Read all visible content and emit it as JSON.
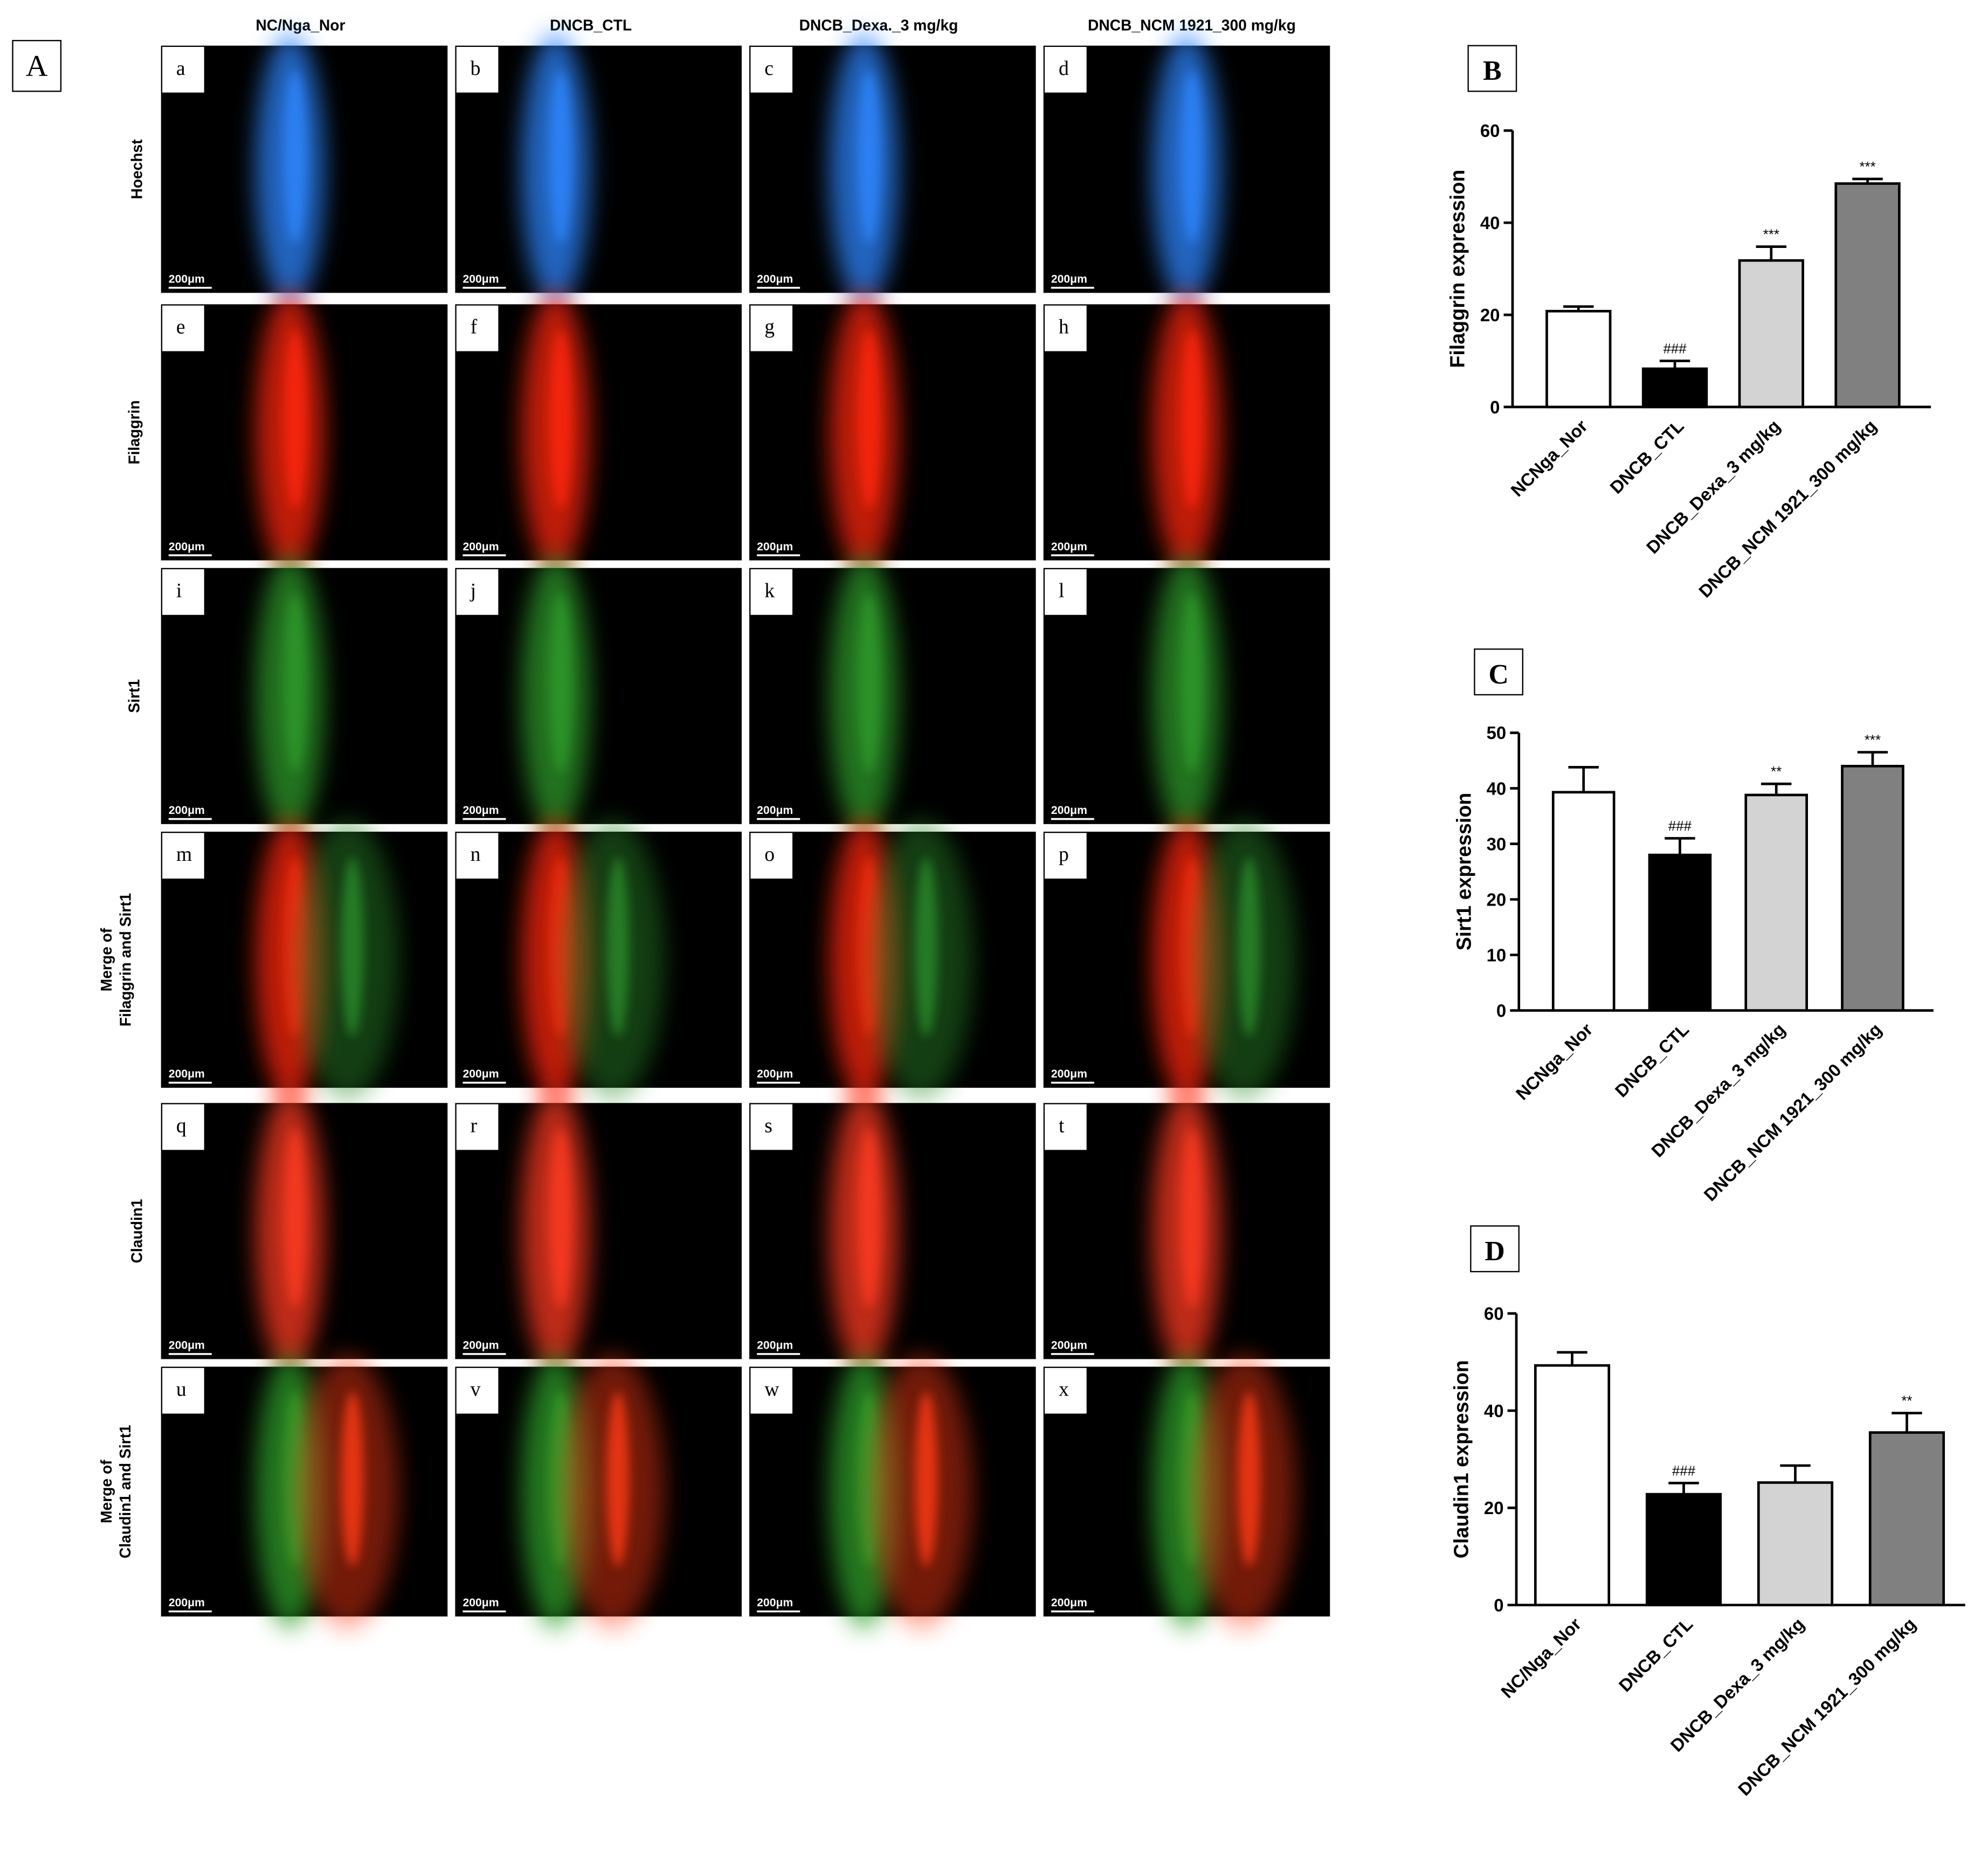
{
  "panel_a": {
    "label": "A",
    "columns": [
      "NC/Nga_Nor",
      "DNCB_CTL",
      "DNCB_Dexa._3 mg/kg",
      "DNCB_NCM 1921_300 mg/kg"
    ],
    "rows": [
      [
        "Hoechst"
      ],
      [
        "Filaggrin"
      ],
      [
        "Sirt1"
      ],
      [
        "Merge of",
        "Filaggrin  and  Sirt1"
      ],
      [
        "Claudin1"
      ],
      [
        "Merge of",
        "Claudin1 and  Sirt1"
      ]
    ],
    "panels": [
      [
        "a",
        "b",
        "c",
        "d"
      ],
      [
        "e",
        "f",
        "g",
        "h"
      ],
      [
        "i",
        "j",
        "k",
        "l"
      ],
      [
        "m",
        "n",
        "o",
        "p"
      ],
      [
        "q",
        "r",
        "s",
        "t"
      ],
      [
        "u",
        "v",
        "w",
        "x"
      ]
    ],
    "scale_bar": "200μm"
  },
  "chart_data": [
    {
      "type": "bar",
      "label": "B",
      "y_label": "Filaggrin expression",
      "categories": [
        "NCNga_Nor",
        "DNCB_CTL",
        "DNCB_Dexa_3 mg/kg",
        "DNCB_NCM 1921_300 mg/kg"
      ],
      "values": [
        20.8,
        8.3,
        31.8,
        48.5
      ],
      "errors": [
        1.0,
        1.7,
        3.0,
        1.0
      ],
      "annotations": [
        null,
        "###",
        "***",
        "***"
      ],
      "colors": [
        "#ffffff",
        "#000000",
        "#d3d3d3",
        "#808080"
      ],
      "ylim": [
        0,
        60
      ],
      "yticks": [
        0,
        20,
        40,
        60
      ]
    },
    {
      "type": "bar",
      "label": "C",
      "y_label": "Sirt1 expression",
      "categories": [
        "NCNga_Nor",
        "DNCB_CTL",
        "DNCB_Dexa_3 mg/kg",
        "DNCB_NCM 1921_300 mg/kg"
      ],
      "values": [
        39.3,
        28,
        38.8,
        44
      ],
      "errors": [
        4.5,
        3.0,
        2.0,
        2.5
      ],
      "annotations": [
        null,
        "###",
        "**",
        "***"
      ],
      "colors": [
        "#ffffff",
        "#000000",
        "#d3d3d3",
        "#808080"
      ],
      "ylim": [
        0,
        50
      ],
      "yticks": [
        0,
        10,
        20,
        30,
        40,
        50
      ]
    },
    {
      "type": "bar",
      "label": "D",
      "y_label": "Claudin1 expression",
      "categories": [
        "NC/Nga_Nor",
        "DNCB_CTL",
        "DNCB_Dexa_3 mg/kg",
        "DNCB_NCM 1921_300 mg/kg"
      ],
      "values": [
        49.3,
        22.8,
        25.2,
        35.5
      ],
      "errors": [
        2.7,
        2.3,
        3.5,
        4.0
      ],
      "annotations": [
        null,
        "###",
        null,
        "**"
      ],
      "colors": [
        "#ffffff",
        "#000000",
        "#d3d3d3",
        "#808080"
      ],
      "ylim": [
        0,
        60
      ],
      "yticks": [
        0,
        20,
        40,
        60
      ]
    }
  ]
}
